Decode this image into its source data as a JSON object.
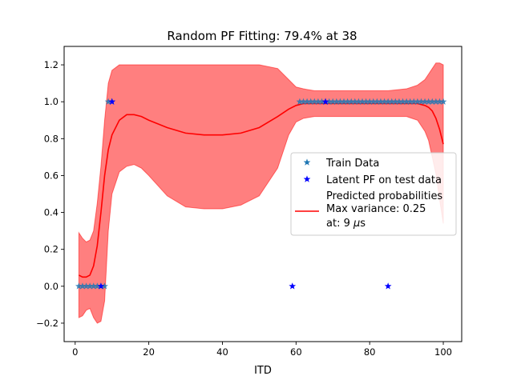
{
  "chart_data": {
    "type": "scatter",
    "title": "Random PF Fitting: 79.4% at 38",
    "xlabel": "ITD",
    "ylabel": "",
    "xlim": [
      -3,
      105
    ],
    "ylim": [
      -0.3,
      1.3
    ],
    "xticks": [
      0,
      20,
      40,
      60,
      80,
      100
    ],
    "xtick_labels": [
      "0",
      "20",
      "40",
      "60",
      "80",
      "100"
    ],
    "yticks": [
      -0.2,
      0.0,
      0.2,
      0.4,
      0.6,
      0.8,
      1.0,
      1.2
    ],
    "ytick_labels": [
      "−0.2",
      "0.0",
      "0.2",
      "0.4",
      "0.6",
      "0.8",
      "1.0",
      "1.2"
    ],
    "grid": false,
    "legend_position": "center-right",
    "legend": {
      "train": "Train Data",
      "latent": "Latent PF on test data",
      "pred_line1": "Predicted probabilities",
      "pred_line2": "Max variance: 0.25",
      "pred_line3_prefix": "at: 9 ",
      "pred_line3_unit_mu": "μ",
      "pred_line3_unit_s": "s"
    },
    "colors": {
      "train": "#1f77b4",
      "latent": "#0000ff",
      "mean_line": "#ff0000",
      "band": "#ff0000"
    },
    "series": [
      {
        "name": "Train Data",
        "kind": "scatter",
        "marker": "star",
        "x": [
          1,
          2,
          3,
          4,
          5,
          6,
          7,
          8,
          9,
          10,
          61,
          62,
          63,
          64,
          65,
          66,
          67,
          68,
          69,
          70,
          71,
          72,
          73,
          74,
          75,
          76,
          77,
          78,
          79,
          80,
          81,
          82,
          83,
          84,
          85,
          86,
          87,
          88,
          89,
          90,
          91,
          92,
          93,
          94,
          95,
          96,
          97,
          98,
          99,
          100
        ],
        "y": [
          0,
          0,
          0,
          0,
          0,
          0,
          0,
          0,
          1,
          1,
          1,
          1,
          1,
          1,
          1,
          1,
          1,
          1,
          1,
          1,
          1,
          1,
          1,
          1,
          1,
          1,
          1,
          1,
          1,
          1,
          1,
          1,
          1,
          1,
          1,
          1,
          1,
          1,
          1,
          1,
          1,
          1,
          1,
          1,
          1,
          1,
          1,
          1,
          1,
          1
        ]
      },
      {
        "name": "Latent PF on test data",
        "kind": "scatter",
        "marker": "star",
        "x": [
          7,
          10,
          59,
          68,
          85
        ],
        "y": [
          0,
          1,
          0,
          1,
          0
        ]
      },
      {
        "name": "Predicted probabilities",
        "kind": "line",
        "x": [
          1,
          2,
          3,
          4,
          5,
          6,
          7,
          8,
          9,
          10,
          12,
          14,
          16,
          18,
          20,
          25,
          30,
          35,
          40,
          45,
          50,
          55,
          58,
          60,
          62,
          65,
          70,
          75,
          80,
          85,
          90,
          93,
          95,
          96,
          97,
          98,
          99,
          100
        ],
        "y": [
          0.06,
          0.05,
          0.05,
          0.06,
          0.11,
          0.22,
          0.4,
          0.6,
          0.74,
          0.82,
          0.9,
          0.93,
          0.93,
          0.92,
          0.9,
          0.86,
          0.83,
          0.82,
          0.82,
          0.83,
          0.86,
          0.92,
          0.96,
          0.98,
          0.99,
          0.99,
          0.99,
          0.99,
          0.99,
          0.99,
          0.99,
          0.99,
          0.98,
          0.97,
          0.95,
          0.91,
          0.85,
          0.77
        ]
      },
      {
        "name": "Predicted probabilities band",
        "kind": "band",
        "x": [
          1,
          2,
          3,
          4,
          5,
          6,
          7,
          8,
          9,
          10,
          12,
          14,
          16,
          18,
          20,
          25,
          30,
          35,
          40,
          45,
          50,
          55,
          58,
          60,
          62,
          65,
          70,
          75,
          80,
          85,
          90,
          93,
          95,
          96,
          97,
          98,
          99,
          100
        ],
        "upper": [
          0.29,
          0.26,
          0.24,
          0.25,
          0.3,
          0.45,
          0.65,
          0.9,
          1.1,
          1.17,
          1.2,
          1.2,
          1.2,
          1.2,
          1.2,
          1.2,
          1.2,
          1.2,
          1.2,
          1.2,
          1.2,
          1.18,
          1.12,
          1.08,
          1.07,
          1.06,
          1.06,
          1.06,
          1.06,
          1.06,
          1.07,
          1.09,
          1.12,
          1.15,
          1.18,
          1.21,
          1.21,
          1.2
        ],
        "lower": [
          -0.17,
          -0.16,
          -0.13,
          -0.12,
          -0.17,
          -0.2,
          -0.19,
          -0.08,
          0.3,
          0.5,
          0.62,
          0.65,
          0.66,
          0.64,
          0.6,
          0.49,
          0.43,
          0.42,
          0.42,
          0.44,
          0.49,
          0.64,
          0.82,
          0.89,
          0.91,
          0.92,
          0.92,
          0.92,
          0.92,
          0.92,
          0.92,
          0.9,
          0.84,
          0.79,
          0.7,
          0.61,
          0.47,
          0.34
        ]
      }
    ]
  }
}
